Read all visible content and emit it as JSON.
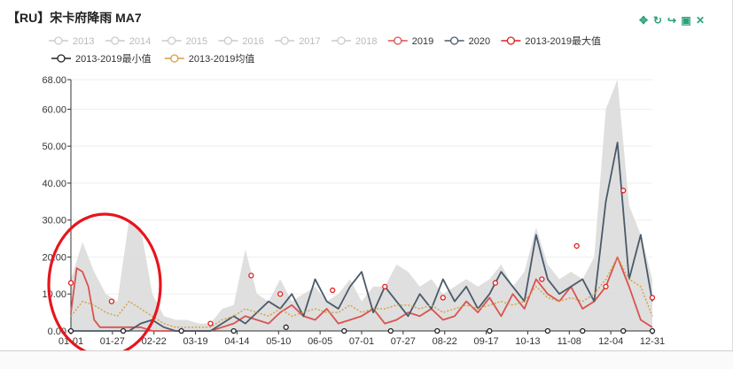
{
  "title": "【RU】宋卡府降雨 MA7",
  "toolbox": {
    "icons": [
      "move-icon",
      "refresh-icon",
      "share-icon",
      "save-image-icon",
      "close-icon"
    ],
    "glyphs": [
      "✥",
      "↻",
      "↪",
      "▣",
      "✕"
    ],
    "color": "#2aa17a"
  },
  "legend": {
    "items": [
      {
        "label": "2013",
        "color": "#cccccc",
        "active": false
      },
      {
        "label": "2014",
        "color": "#cccccc",
        "active": false
      },
      {
        "label": "2015",
        "color": "#cccccc",
        "active": false
      },
      {
        "label": "2016",
        "color": "#cccccc",
        "active": false
      },
      {
        "label": "2017",
        "color": "#cccccc",
        "active": false
      },
      {
        "label": "2018",
        "color": "#cccccc",
        "active": false
      },
      {
        "label": "2019",
        "color": "#d9534f",
        "active": true
      },
      {
        "label": "2020",
        "color": "#4a5a6a",
        "active": true
      },
      {
        "label": "2013-2019最大值",
        "color": "#e02020",
        "active": true
      },
      {
        "label": "2013-2019最小值",
        "color": "#222222",
        "active": true
      },
      {
        "label": "2013-2019均值",
        "color": "#d4a040",
        "active": true
      }
    ]
  },
  "annotation": {
    "color": "#e8141e"
  },
  "chart_data": {
    "type": "line",
    "title": "【RU】宋卡府降雨 MA7",
    "x_ticks": [
      "01-01",
      "01-27",
      "02-22",
      "03-19",
      "04-14",
      "05-10",
      "06-05",
      "07-01",
      "07-27",
      "08-22",
      "09-17",
      "10-13",
      "11-08",
      "12-04",
      "12-31"
    ],
    "y_ticks": [
      "0.00",
      "10.00",
      "20.00",
      "30.00",
      "40.00",
      "50.00",
      "60.00",
      "68.00"
    ],
    "ylim": [
      0,
      68
    ],
    "grid": true,
    "legend_position": "top",
    "band": {
      "name": "2013-2019 range",
      "color": "#d9d9d9",
      "x": [
        0,
        2,
        4,
        6,
        8,
        10,
        12,
        14,
        16,
        18,
        20,
        22,
        24,
        26,
        28,
        30,
        32,
        34,
        36,
        38,
        40,
        42,
        44,
        46,
        48,
        50,
        52,
        54,
        56,
        58,
        60,
        62,
        64,
        66,
        68,
        70,
        72,
        74,
        76,
        78,
        80,
        82,
        84,
        86,
        88,
        90,
        92,
        94,
        96,
        98,
        100
      ],
      "upper": [
        14,
        24,
        16,
        10,
        8,
        30,
        28,
        10,
        4,
        3,
        3,
        2,
        2,
        6,
        7,
        22,
        10,
        8,
        14,
        8,
        10,
        12,
        8,
        10,
        14,
        8,
        12,
        12,
        18,
        16,
        12,
        14,
        10,
        12,
        14,
        12,
        14,
        18,
        12,
        16,
        28,
        18,
        14,
        16,
        14,
        20,
        60,
        68,
        34,
        26,
        14
      ],
      "lower": [
        0,
        0,
        0,
        0,
        0,
        0,
        0,
        0,
        0,
        0,
        0,
        0,
        0,
        0,
        0,
        0,
        0,
        0,
        0,
        0,
        0,
        0,
        0,
        0,
        0,
        0,
        0,
        0,
        0,
        0,
        0,
        0,
        0,
        0,
        0,
        0,
        0,
        0,
        0,
        0,
        0,
        0,
        0,
        0,
        0,
        0,
        0,
        0,
        0,
        0,
        0
      ]
    },
    "series": [
      {
        "name": "2019",
        "color": "#d9534f",
        "style": "solid",
        "x": [
          0,
          1,
          2,
          3,
          4,
          5,
          6,
          8,
          10,
          12,
          14,
          16,
          18,
          20,
          22,
          24,
          26,
          28,
          30,
          32,
          34,
          36,
          38,
          40,
          42,
          44,
          46,
          48,
          50,
          52,
          54,
          56,
          58,
          60,
          62,
          64,
          66,
          68,
          70,
          72,
          74,
          76,
          78,
          80,
          82,
          84,
          86,
          88,
          90,
          92,
          94,
          96,
          98,
          100
        ],
        "values": [
          5,
          17,
          16,
          12,
          3,
          1,
          1,
          1,
          1,
          1,
          0,
          0,
          0,
          0,
          0,
          0,
          1,
          2,
          4,
          3,
          2,
          5,
          7,
          4,
          3,
          6,
          2,
          3,
          4,
          6,
          2,
          3,
          5,
          4,
          6,
          3,
          4,
          8,
          5,
          9,
          4,
          10,
          6,
          14,
          10,
          8,
          12,
          6,
          8,
          12,
          20,
          12,
          3,
          1
        ]
      },
      {
        "name": "2020",
        "color": "#4a5a6a",
        "style": "solid",
        "x": [
          0,
          2,
          4,
          6,
          8,
          10,
          12,
          14,
          16,
          18,
          20,
          22,
          24,
          26,
          28,
          30,
          32,
          34,
          36,
          38,
          40,
          42,
          44,
          46,
          48,
          50,
          52,
          54,
          56,
          58,
          60,
          62,
          64,
          66,
          68,
          70,
          72,
          74,
          76,
          78,
          80,
          82,
          84,
          86,
          88,
          90,
          92,
          94,
          96,
          98,
          100
        ],
        "values": [
          0,
          0,
          0,
          0,
          0,
          0,
          2,
          3,
          1,
          0,
          0,
          0,
          0,
          2,
          4,
          2,
          5,
          8,
          6,
          10,
          4,
          14,
          8,
          6,
          12,
          16,
          5,
          12,
          8,
          4,
          10,
          6,
          14,
          8,
          12,
          6,
          10,
          16,
          12,
          8,
          26,
          14,
          10,
          12,
          14,
          8,
          35,
          51,
          14,
          26,
          8
        ]
      },
      {
        "name": "2013-2019均值",
        "color": "#d4a040",
        "style": "dotted",
        "x": [
          0,
          2,
          4,
          6,
          8,
          10,
          12,
          14,
          16,
          18,
          20,
          22,
          24,
          26,
          28,
          30,
          32,
          34,
          36,
          38,
          40,
          42,
          44,
          46,
          48,
          50,
          52,
          54,
          56,
          58,
          60,
          62,
          64,
          66,
          68,
          70,
          72,
          74,
          76,
          78,
          80,
          82,
          84,
          86,
          88,
          90,
          92,
          94,
          96,
          98,
          100
        ],
        "values": [
          4,
          8,
          7,
          5,
          4,
          8,
          6,
          4,
          2,
          1,
          1,
          1,
          1,
          3,
          4,
          6,
          5,
          4,
          6,
          4,
          5,
          6,
          5,
          5,
          7,
          5,
          6,
          6,
          7,
          7,
          6,
          7,
          5,
          6,
          7,
          6,
          7,
          8,
          7,
          8,
          12,
          9,
          8,
          9,
          8,
          10,
          14,
          20,
          14,
          12,
          4
        ]
      }
    ],
    "max_markers": {
      "name": "2013-2019最大值",
      "color": "#e02020",
      "x": [
        0,
        7,
        24,
        31,
        36,
        45,
        54,
        64,
        73,
        81,
        87,
        92,
        95,
        100
      ],
      "values": [
        13,
        8,
        2,
        15,
        10,
        11,
        12,
        9,
        13,
        14,
        23,
        12,
        38,
        9
      ]
    },
    "min_markers": {
      "name": "2013-2019最小值",
      "color": "#222222",
      "x": [
        0,
        9,
        19,
        28,
        37,
        47,
        55,
        63,
        72,
        82,
        88,
        95,
        100
      ],
      "values": [
        0,
        0,
        0,
        0,
        1,
        0,
        0,
        0,
        0,
        0,
        0,
        0,
        0
      ]
    }
  }
}
